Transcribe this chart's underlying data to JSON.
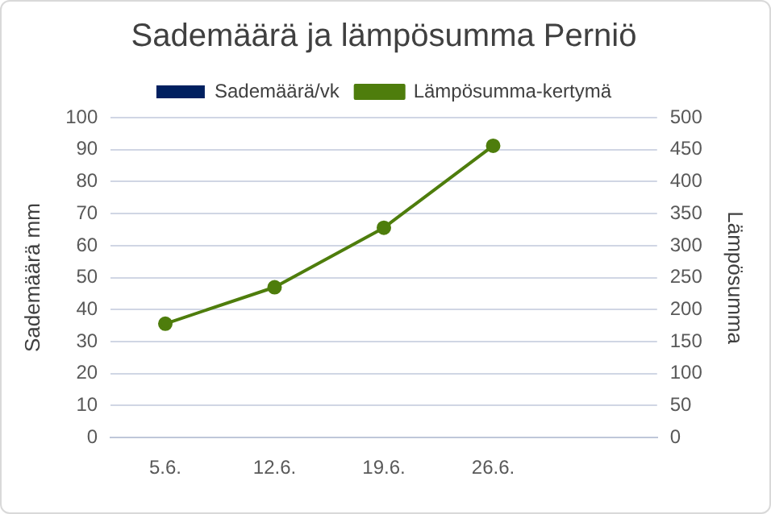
{
  "chart_data": {
    "type": "bar",
    "title": "Sademäärä ja lämpösumma Perniö",
    "ylabel": "Sademäärä mm",
    "y2label": "Lämpösumma",
    "categories": [
      "5.6.",
      "12.6.",
      "19.6.",
      "26.6.",
      null
    ],
    "series": [
      {
        "name": "Sademäärä/vk",
        "color": "#002060",
        "values": [
          null,
          null,
          null,
          null,
          null
        ]
      },
      {
        "name": "Lämpösumma-kertymä",
        "type": "line",
        "axis": "y2",
        "color": "#4e7d0c",
        "values": [
          178,
          235,
          328,
          456,
          null
        ]
      }
    ],
    "ylim": [
      0,
      100
    ],
    "yticks": [
      0,
      10,
      20,
      30,
      40,
      50,
      60,
      70,
      80,
      90,
      100
    ],
    "y2lim": [
      0,
      500
    ],
    "y2ticks": [
      0,
      50,
      100,
      150,
      200,
      250,
      300,
      350,
      400,
      450,
      500
    ],
    "grid": "y",
    "legend": "top",
    "marker": "circle",
    "line_style": "solid"
  }
}
